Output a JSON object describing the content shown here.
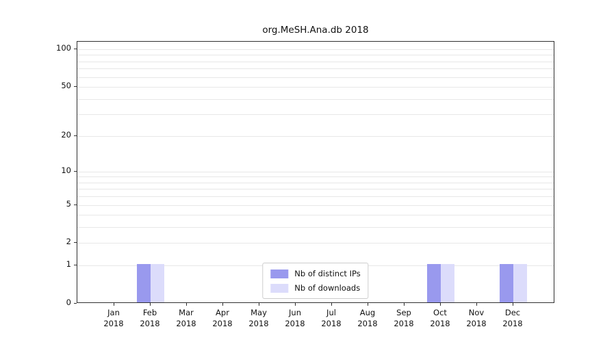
{
  "title": "org.MeSH.Ana.db 2018",
  "chart_data": {
    "type": "bar",
    "title": "org.MeSH.Ana.db 2018",
    "categories": [
      "Jan",
      "Feb",
      "Mar",
      "Apr",
      "May",
      "Jun",
      "Jul",
      "Aug",
      "Sep",
      "Oct",
      "Nov",
      "Dec"
    ],
    "year": "2018",
    "series": [
      {
        "name": "Nb of distinct IPs",
        "color": "#9999ee",
        "values": [
          0,
          1,
          0,
          0,
          0,
          0,
          0,
          0,
          0,
          1,
          0,
          1
        ]
      },
      {
        "name": "Nb of downloads",
        "color": "#dcdcfb",
        "values": [
          0,
          1,
          0,
          0,
          0,
          0,
          0,
          0,
          0,
          1,
          0,
          1
        ]
      }
    ],
    "y_ticks": [
      0,
      1,
      2,
      5,
      10,
      20,
      50,
      100
    ],
    "y_scale": "log1p",
    "ylim": [
      0,
      100
    ],
    "grid_values": [
      1,
      2,
      3,
      4,
      5,
      6,
      7,
      8,
      9,
      10,
      20,
      30,
      40,
      50,
      60,
      70,
      80,
      90,
      100
    ],
    "grid": true,
    "legend_position": "bottom-center",
    "axis_color": "#2f2f2f",
    "grid_color": "#e7e7e7"
  }
}
